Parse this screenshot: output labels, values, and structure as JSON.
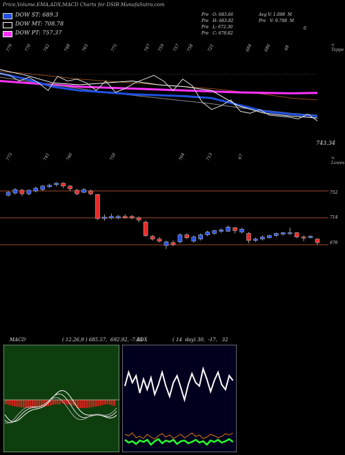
{
  "title": "Price,Volume,EMA,ADX,MACD Charts for DSIB MunafaSutra.com",
  "legend": [
    {
      "label": "DOW ST: 689.3",
      "color": "#1e4fe0"
    },
    {
      "label": "DOW MT: 708.78",
      "color": "#000000"
    },
    {
      "label": "DOW PT: 757.37",
      "color": "#ff33ff"
    }
  ],
  "info": {
    "pre_o": "Pre   O: 683.66",
    "pre_h": "Pre   H: 683.82",
    "pre_l": "Pre   L: 672.30",
    "pre_c": "Pre   C: 678.82",
    "avg_v": "Avg V: 1.098  M",
    "pre_v": "Pre   V: 9.798  M",
    "zero": "0"
  },
  "top_tick_labels": [
    "779",
    "770",
    "742",
    "748",
    "765",
    "775",
    "747",
    "759",
    "757",
    "758",
    "721",
    "684",
    "686",
    "68"
  ],
  "top_right_label": "< Toppe",
  "bottom_tick_labels": [
    "773",
    "741",
    "746",
    "750",
    "704",
    "713",
    "67"
  ],
  "bottom_right_label": "< Lowes",
  "ema_last_label": "743.34",
  "chart_data": [
    {
      "type": "line",
      "name": "price-ema",
      "series": [
        {
          "name": "DOW PT",
          "color": "#ff33ff",
          "values": [
            768,
            766,
            764,
            763,
            763,
            762,
            762,
            761,
            760,
            759,
            758,
            757,
            757
          ]
        },
        {
          "name": "DOW MT",
          "color": "#1e4fe0",
          "values": [
            765,
            762,
            758,
            755,
            753,
            751,
            750,
            749,
            748,
            746,
            744,
            742,
            741
          ]
        }
      ]
    },
    {
      "type": "candlestick",
      "name": "price-candles",
      "hlines": [
        752,
        714,
        676
      ],
      "hline_labels": [
        "752",
        "714",
        "676"
      ],
      "ylim": [
        660,
        790
      ],
      "candles": [
        {
          "o": 746,
          "c": 750,
          "h": 752,
          "l": 744
        },
        {
          "o": 749,
          "c": 754,
          "h": 756,
          "l": 747
        },
        {
          "o": 753,
          "c": 748,
          "h": 755,
          "l": 745
        },
        {
          "o": 748,
          "c": 753,
          "h": 754,
          "l": 746
        },
        {
          "o": 752,
          "c": 756,
          "h": 758,
          "l": 750
        },
        {
          "o": 754,
          "c": 759,
          "h": 760,
          "l": 752
        },
        {
          "o": 758,
          "c": 760,
          "h": 762,
          "l": 756
        },
        {
          "o": 761,
          "c": 763,
          "h": 764,
          "l": 758
        },
        {
          "o": 763,
          "c": 759,
          "h": 764,
          "l": 756
        },
        {
          "o": 759,
          "c": 755,
          "h": 760,
          "l": 752
        },
        {
          "o": 753,
          "c": 748,
          "h": 755,
          "l": 746
        },
        {
          "o": 750,
          "c": 754,
          "h": 756,
          "l": 749
        },
        {
          "o": 752,
          "c": 748,
          "h": 754,
          "l": 746
        },
        {
          "o": 747,
          "c": 713,
          "h": 748,
          "l": 711
        },
        {
          "o": 713,
          "c": 715,
          "h": 719,
          "l": 710
        },
        {
          "o": 714,
          "c": 716,
          "h": 720,
          "l": 712
        },
        {
          "o": 714,
          "c": 716,
          "h": 718,
          "l": 712
        },
        {
          "o": 716,
          "c": 714,
          "h": 719,
          "l": 713
        },
        {
          "o": 716,
          "c": 714,
          "h": 718,
          "l": 712
        },
        {
          "o": 714,
          "c": 711,
          "h": 716,
          "l": 708
        },
        {
          "o": 708,
          "c": 689,
          "h": 710,
          "l": 687
        },
        {
          "o": 688,
          "c": 684,
          "h": 690,
          "l": 682
        },
        {
          "o": 684,
          "c": 681,
          "h": 687,
          "l": 679
        },
        {
          "o": 675,
          "c": 680,
          "h": 682,
          "l": 670
        },
        {
          "o": 679,
          "c": 676,
          "h": 682,
          "l": 674
        },
        {
          "o": 680,
          "c": 690,
          "h": 692,
          "l": 678
        },
        {
          "o": 690,
          "c": 686,
          "h": 692,
          "l": 684
        },
        {
          "o": 681,
          "c": 687,
          "h": 689,
          "l": 679
        },
        {
          "o": 684,
          "c": 690,
          "h": 692,
          "l": 682
        },
        {
          "o": 690,
          "c": 694,
          "h": 696,
          "l": 688
        },
        {
          "o": 692,
          "c": 696,
          "h": 697,
          "l": 690
        },
        {
          "o": 695,
          "c": 697,
          "h": 699,
          "l": 693
        },
        {
          "o": 695,
          "c": 701,
          "h": 703,
          "l": 694
        },
        {
          "o": 700,
          "c": 696,
          "h": 701,
          "l": 692
        },
        {
          "o": 694,
          "c": 698,
          "h": 700,
          "l": 692
        },
        {
          "o": 692,
          "c": 682,
          "h": 694,
          "l": 678
        },
        {
          "o": 682,
          "c": 684,
          "h": 686,
          "l": 680
        },
        {
          "o": 684,
          "c": 687,
          "h": 689,
          "l": 682
        },
        {
          "o": 686,
          "c": 689,
          "h": 690,
          "l": 685
        },
        {
          "o": 689,
          "c": 692,
          "h": 693,
          "l": 687
        },
        {
          "o": 691,
          "c": 693,
          "h": 694,
          "l": 689
        },
        {
          "o": 692,
          "c": 693,
          "h": 700,
          "l": 690
        },
        {
          "o": 693,
          "c": 687,
          "h": 694,
          "l": 685
        },
        {
          "o": 687,
          "c": 686,
          "h": 689,
          "l": 681
        },
        {
          "o": 686,
          "c": 688,
          "h": 689,
          "l": 685
        },
        {
          "o": 684,
          "c": 679,
          "h": 685,
          "l": 676
        }
      ]
    },
    {
      "type": "bar",
      "name": "macd",
      "label": "MACD",
      "text": "( 12,26,9 ) 685.57,  692.92, -7.05",
      "bg": "#0e3e0e"
    },
    {
      "type": "line",
      "name": "adx",
      "label": "ADX",
      "text": "( 14  day) 30,  -17,   32",
      "bg": "#00001e"
    }
  ]
}
